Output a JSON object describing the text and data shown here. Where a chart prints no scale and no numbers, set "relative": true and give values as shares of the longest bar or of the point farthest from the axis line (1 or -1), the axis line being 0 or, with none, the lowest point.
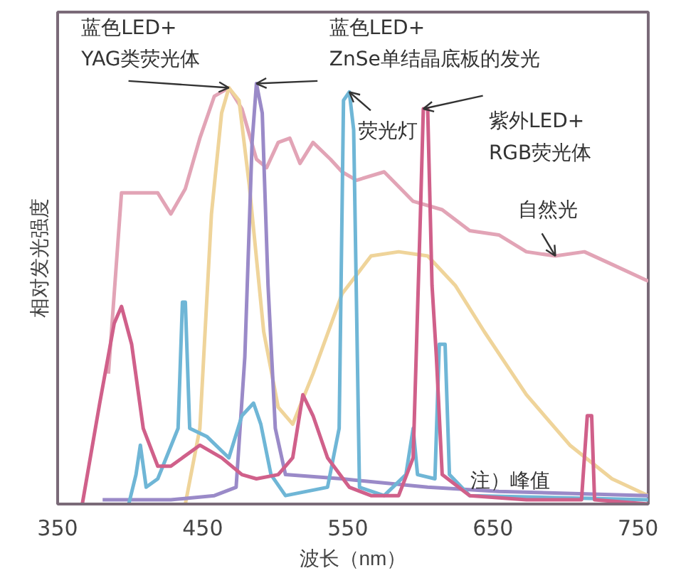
{
  "chart_data": {
    "type": "line",
    "relative": true,
    "xlabel": "波长（nm）",
    "ylabel": "相对发光强度",
    "xlim": [
      350,
      757
    ],
    "xticks": [
      350,
      450,
      550,
      650,
      750
    ],
    "annotations": [
      "注）峰值"
    ],
    "series": [
      {
        "name": "自然光",
        "color": "#e2a4b6",
        "x": [
          385,
          394,
          404,
          419,
          428,
          438,
          448,
          458,
          468,
          477,
          487,
          494,
          502,
          510,
          517,
          526,
          538,
          546,
          556,
          575,
          595,
          615,
          634,
          654,
          673,
          693,
          713,
          732,
          757
        ],
        "values": [
          0.31,
          0.74,
          0.74,
          0.74,
          0.69,
          0.75,
          0.87,
          0.97,
          0.99,
          0.94,
          0.82,
          0.8,
          0.86,
          0.87,
          0.81,
          0.86,
          0.82,
          0.79,
          0.77,
          0.79,
          0.72,
          0.7,
          0.65,
          0.64,
          0.6,
          0.59,
          0.6,
          0.57,
          0.53
        ]
      },
      {
        "name": "蓝色LED+\nYAG类荧光体",
        "color": "#efd49a",
        "x": [
          438,
          448,
          456,
          463,
          468,
          475,
          482,
          492,
          502,
          512,
          526,
          546,
          566,
          585,
          605,
          624,
          644,
          673,
          703,
          732,
          757
        ],
        "values": [
          0,
          0.18,
          0.69,
          0.93,
          0.99,
          0.96,
          0.76,
          0.41,
          0.23,
          0.19,
          0.31,
          0.5,
          0.59,
          0.6,
          0.59,
          0.52,
          0.41,
          0.26,
          0.14,
          0.06,
          0.02
        ]
      },
      {
        "name": "蓝色LED+\nZnSe单结晶底板的发光",
        "color": "#9a8ac8",
        "x": [
          381,
          428,
          458,
          473,
          479,
          484,
          487,
          491,
          495,
          500,
          507,
          546,
          605,
          654,
          757
        ],
        "values": [
          0.01,
          0.01,
          0.02,
          0.04,
          0.35,
          0.86,
          1,
          0.93,
          0.52,
          0.18,
          0.07,
          0.06,
          0.04,
          0.03,
          0.02
        ]
      },
      {
        "name": "荧光灯",
        "color": "#6fb6d6",
        "x": [
          399,
          404,
          407,
          411,
          419,
          433,
          436,
          438,
          441,
          453,
          468,
          477,
          485,
          490,
          497,
          507,
          536,
          544,
          547,
          551,
          554,
          558,
          575,
          590,
          595,
          598,
          610,
          613,
          617,
          620,
          634,
          757
        ],
        "values": [
          0,
          0.07,
          0.14,
          0.04,
          0.06,
          0.18,
          0.48,
          0.48,
          0.18,
          0.16,
          0.11,
          0.21,
          0.24,
          0.19,
          0.07,
          0.02,
          0.04,
          0.18,
          0.96,
          0.98,
          0.89,
          0.04,
          0.02,
          0.07,
          0.18,
          0.07,
          0.06,
          0.38,
          0.38,
          0.07,
          0.02,
          0.01
        ]
      },
      {
        "name": "紫外LED+\nRGB荧光体",
        "color": "#d0608a",
        "x": [
          367,
          379,
          389,
          394,
          401,
          409,
          419,
          428,
          448,
          463,
          477,
          487,
          502,
          512,
          519,
          526,
          536,
          551,
          566,
          585,
          595,
          600,
          602,
          605,
          608,
          611,
          615,
          634,
          673,
          711,
          715,
          718,
          720,
          757
        ],
        "values": [
          0,
          0.24,
          0.43,
          0.47,
          0.38,
          0.18,
          0.09,
          0.09,
          0.14,
          0.11,
          0.07,
          0.06,
          0.07,
          0.11,
          0.26,
          0.21,
          0.11,
          0.04,
          0.02,
          0.02,
          0.11,
          0.69,
          0.94,
          0.94,
          0.52,
          0.35,
          0.07,
          0.02,
          0.01,
          0.01,
          0.21,
          0.21,
          0.01,
          0
        ]
      }
    ]
  }
}
